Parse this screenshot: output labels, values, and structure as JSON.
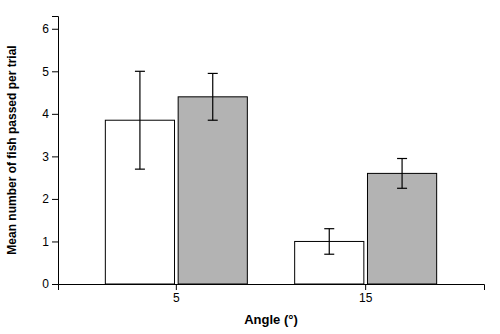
{
  "chart_data": {
    "type": "bar",
    "categories": [
      "5",
      "15"
    ],
    "series": [
      {
        "color": "#ffffff",
        "values": [
          3.85,
          1.0
        ],
        "errors": [
          1.15,
          0.3
        ]
      },
      {
        "color": "#b3b3b3",
        "values": [
          4.4,
          2.6
        ],
        "errors": [
          0.55,
          0.35
        ]
      }
    ],
    "xlabel": "Angle (°)",
    "ylabel": "Mean number of fish passed per trial",
    "ylim": [
      0,
      6.3
    ],
    "yticks": [
      0,
      1,
      2,
      3,
      4,
      5,
      6
    ],
    "grid": false
  }
}
